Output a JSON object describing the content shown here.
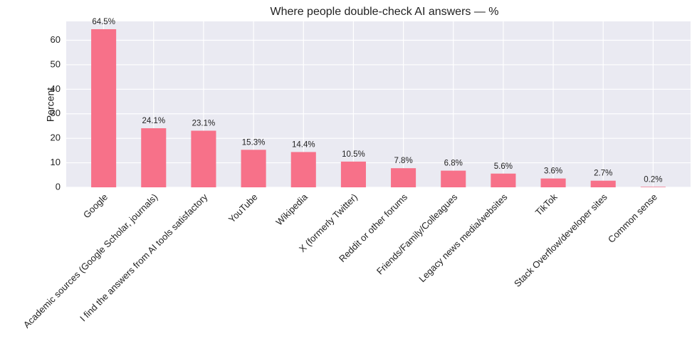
{
  "chart_data": {
    "type": "bar",
    "title": "Where people double-check AI answers — %",
    "ylabel": "Percent",
    "categories": [
      "Google",
      "Academic sources (Google Scholar, journals)",
      "I find the answers from AI tools satisfactory",
      "YouTube",
      "Wikipedia",
      "X (formerly Twitter)",
      "Reddit or other forums",
      "Friends/Family/Colleagues",
      "Legacy news media/websites",
      "TikTok",
      "Stack Overflow/developer sites",
      "Common sense"
    ],
    "values": [
      64.5,
      24.1,
      23.1,
      15.3,
      14.4,
      10.5,
      7.8,
      6.8,
      5.6,
      3.6,
      2.7,
      0.2
    ],
    "value_labels": [
      "64.5%",
      "24.1%",
      "23.1%",
      "15.3%",
      "14.4%",
      "10.5%",
      "7.8%",
      "6.8%",
      "5.6%",
      "3.6%",
      "2.7%",
      "0.2%"
    ],
    "color": "#f77189",
    "ylim": [
      0,
      67.7
    ],
    "yticks": [
      0,
      10,
      20,
      30,
      40,
      50,
      60
    ],
    "grid": true
  }
}
